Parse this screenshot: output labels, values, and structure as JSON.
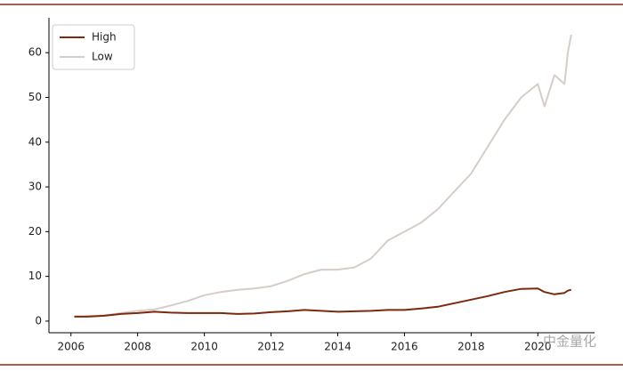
{
  "chart_data": {
    "type": "line",
    "x": [
      2006.1,
      2006.5,
      2007,
      2007.5,
      2008,
      2008.5,
      2009,
      2009.5,
      2010,
      2010.5,
      2011,
      2011.5,
      2012,
      2012.5,
      2013,
      2013.5,
      2014,
      2014.5,
      2015,
      2015.5,
      2016,
      2016.5,
      2017,
      2017.5,
      2018,
      2018.5,
      2019,
      2019.5,
      2020,
      2020.2,
      2020.5,
      2020.8,
      2020.9,
      2021
    ],
    "series": [
      {
        "name": "High",
        "color": "#7b2a0e",
        "values": [
          1,
          1,
          1.2,
          1.6,
          1.8,
          2.1,
          1.9,
          1.8,
          1.8,
          1.8,
          1.6,
          1.7,
          2.0,
          2.2,
          2.5,
          2.3,
          2.1,
          2.2,
          2.3,
          2.5,
          2.5,
          2.8,
          3.2,
          4,
          4.8,
          5.6,
          6.5,
          7.2,
          7.3,
          6.5,
          6,
          6.3,
          6.8,
          7
        ]
      },
      {
        "name": "Low",
        "color": "#d6cdc8",
        "values": [
          1,
          1.1,
          1.3,
          1.8,
          2.3,
          2.6,
          3.5,
          4.5,
          5.8,
          6.5,
          7,
          7.3,
          7.8,
          9,
          10.5,
          11.5,
          11.5,
          12,
          14,
          18,
          20,
          22,
          25,
          29,
          33,
          39,
          45,
          50,
          53,
          48,
          55,
          53,
          60,
          64
        ]
      }
    ],
    "xlim": [
      2005.34,
      2021.7
    ],
    "xticks": [
      2006,
      2008,
      2010,
      2012,
      2014,
      2016,
      2018,
      2020
    ],
    "ylim": [
      -2.6,
      67.8
    ],
    "yticks": [
      0,
      10,
      20,
      30,
      40,
      50,
      60
    ],
    "legend": "upper left",
    "watermark": "中金量化"
  }
}
